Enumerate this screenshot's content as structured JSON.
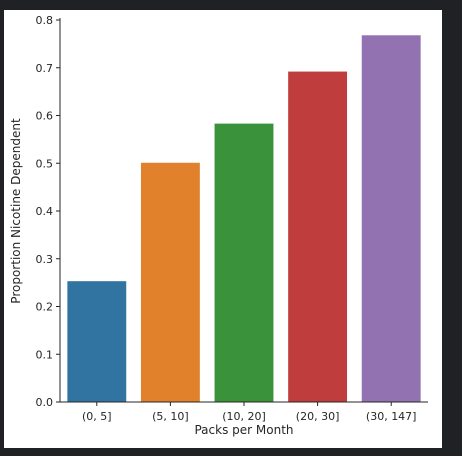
{
  "chart_data": {
    "type": "bar",
    "title": "",
    "xlabel": "Packs per Month",
    "ylabel": "Proportion Nicotine Dependent",
    "categories": [
      "(0, 5]",
      "(5, 10]",
      "(10, 20]",
      "(20, 30]",
      "(30, 147]"
    ],
    "values": [
      0.253,
      0.501,
      0.583,
      0.692,
      0.768
    ],
    "colors": [
      "#3274a1",
      "#e1812c",
      "#3a923a",
      "#c03d3e",
      "#9372b2"
    ],
    "ylim": [
      0,
      0.8
    ],
    "yticks": [
      "0.0",
      "0.1",
      "0.2",
      "0.3",
      "0.4",
      "0.5",
      "0.6",
      "0.7",
      "0.8"
    ],
    "grid": false,
    "legend": "none"
  }
}
